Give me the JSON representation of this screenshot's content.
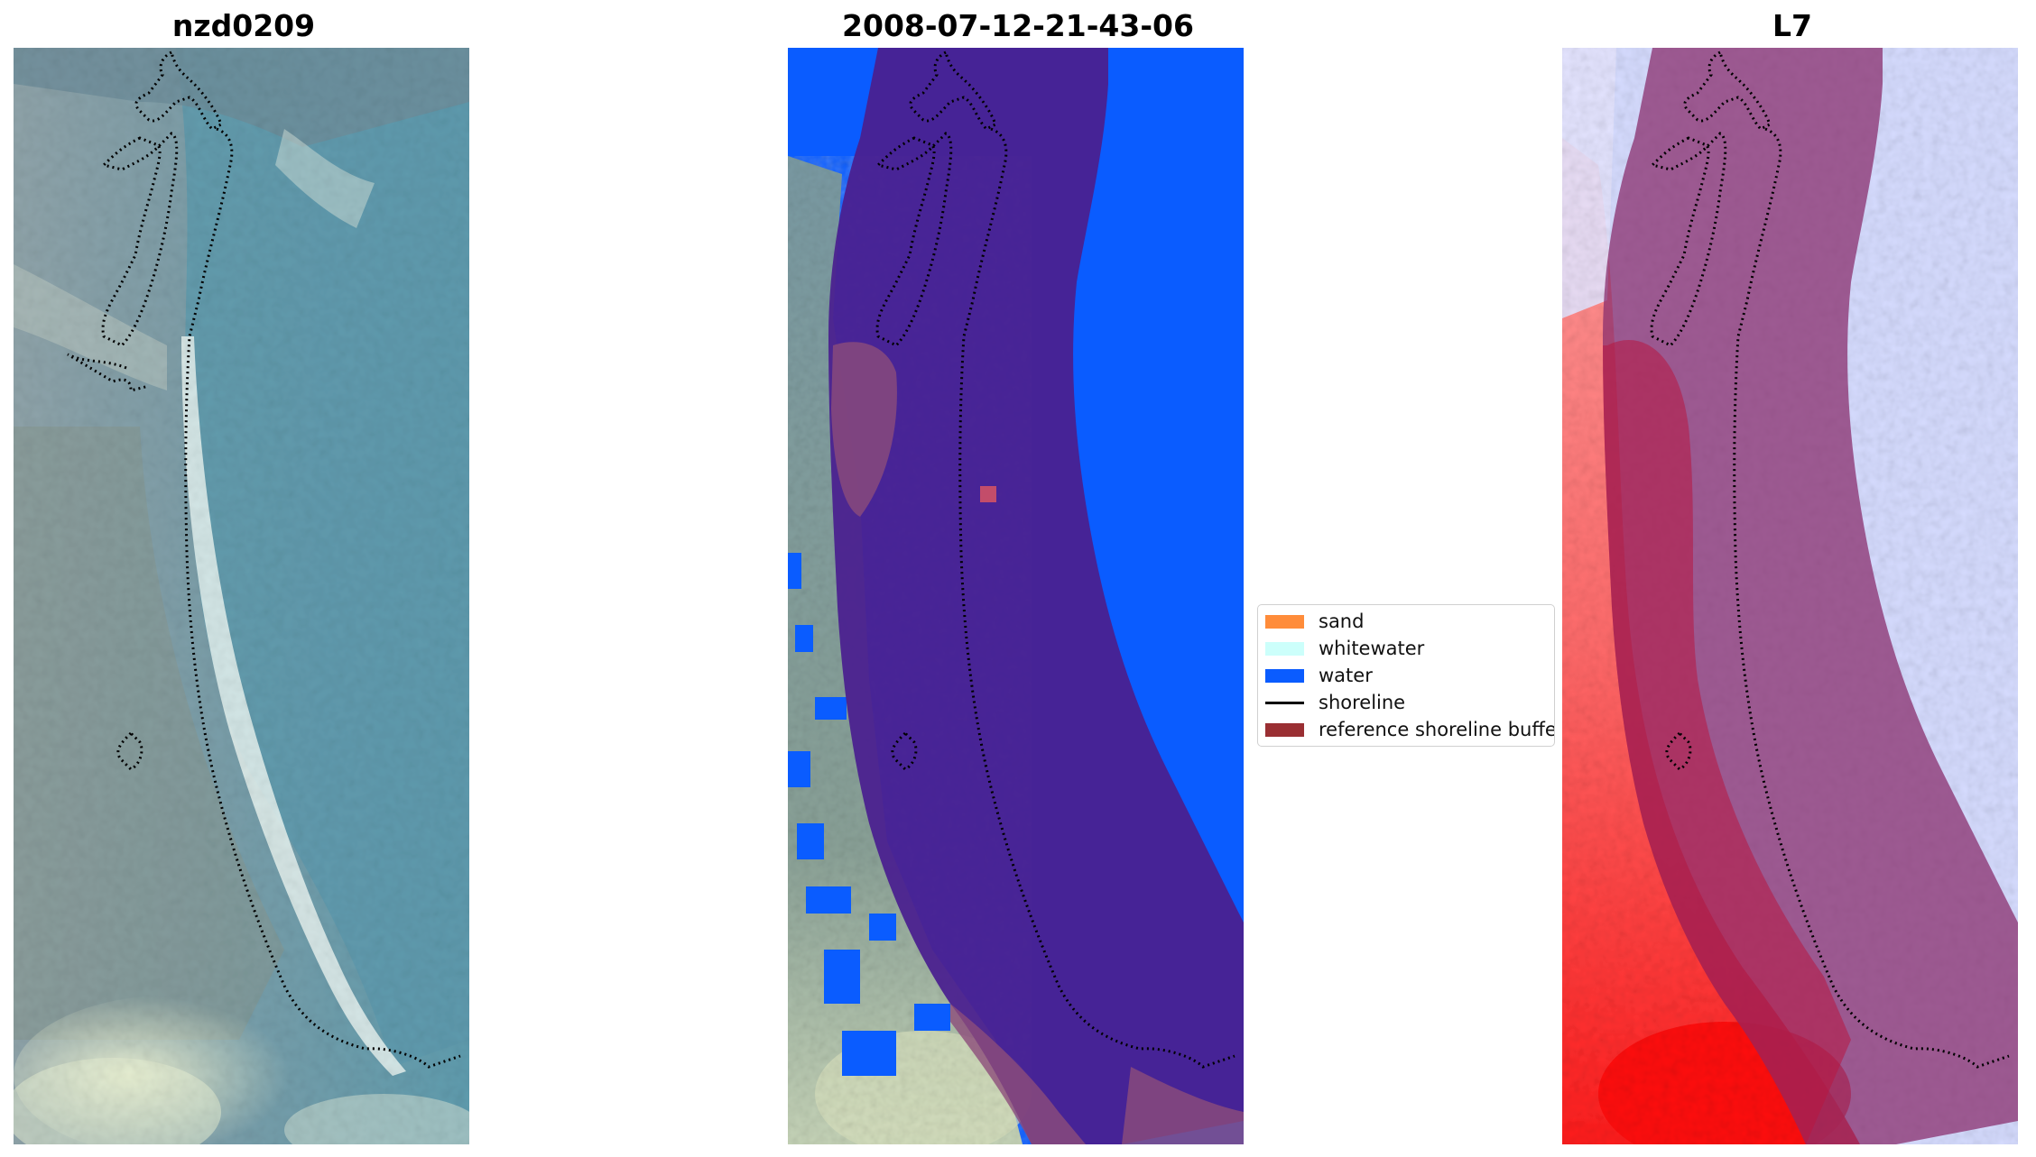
{
  "panels": [
    {
      "title": "nzd0209",
      "kind": "rgb"
    },
    {
      "title": "2008-07-12-21-43-06",
      "kind": "classification"
    },
    {
      "title": "L7",
      "kind": "index"
    }
  ],
  "legend": {
    "items": [
      {
        "label": "sand",
        "color": "#ff8c3a",
        "type": "patch"
      },
      {
        "label": "whitewater",
        "color": "#ccfffb",
        "type": "patch"
      },
      {
        "label": "water",
        "color": "#0a5cff",
        "type": "patch"
      },
      {
        "label": "shoreline",
        "color": "#000000",
        "type": "line"
      },
      {
        "label": "reference shoreline buffer",
        "color": "#9a2f33",
        "type": "patch"
      }
    ]
  },
  "colors": {
    "buffer_overlay": "#4a208f",
    "water": "#0a5cff",
    "index_red": "#ff2a2a",
    "index_blue": "#cfd4ff"
  }
}
